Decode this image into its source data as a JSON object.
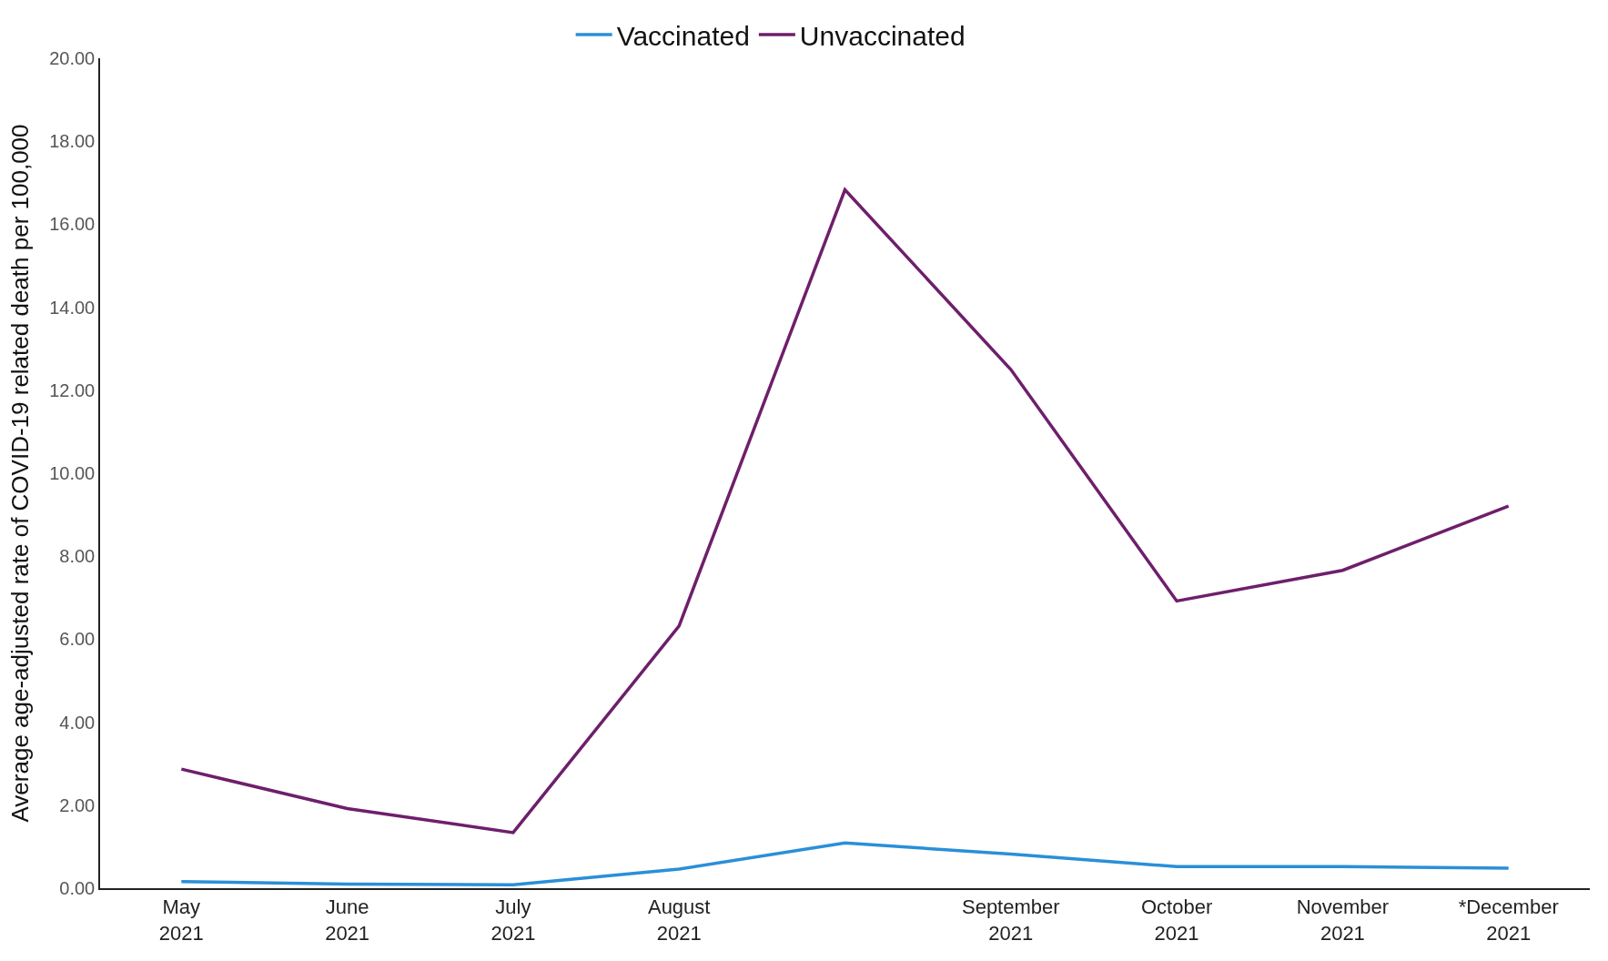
{
  "chart_data": {
    "type": "line",
    "ylabel": "Average age-adjusted rate of COVID-19 related death per 100,000",
    "categories": [
      "May 2021",
      "June 2021",
      "July 2021",
      "August 2021",
      null,
      "September 2021",
      "October 2021",
      "November 2021",
      "*December 2021"
    ],
    "series": [
      {
        "name": "Vaccinated",
        "color": "#2a8fd8",
        "values": [
          0.16,
          0.1,
          0.08,
          0.46,
          1.09,
          0.82,
          0.52,
          0.52,
          0.48
        ]
      },
      {
        "name": "Unvaccinated",
        "color": "#6e1f6b",
        "values": [
          2.87,
          1.92,
          1.34,
          6.32,
          16.83,
          12.5,
          6.92,
          7.66,
          9.21
        ]
      }
    ],
    "ylim": [
      0,
      20
    ],
    "yticks": [
      {
        "value": 0,
        "label": "0.00"
      },
      {
        "value": 2,
        "label": "2.00"
      },
      {
        "value": 4,
        "label": "4.00"
      },
      {
        "value": 6,
        "label": "6.00"
      },
      {
        "value": 8,
        "label": "8.00"
      },
      {
        "value": 10,
        "label": "10.00"
      },
      {
        "value": 12,
        "label": "12.00"
      },
      {
        "value": 14,
        "label": "14.00"
      },
      {
        "value": 16,
        "label": "16.00"
      },
      {
        "value": 18,
        "label": "18.00"
      },
      {
        "value": 20,
        "label": "20.00"
      }
    ],
    "legend": "top",
    "marker": "none",
    "line_style": "solid"
  }
}
